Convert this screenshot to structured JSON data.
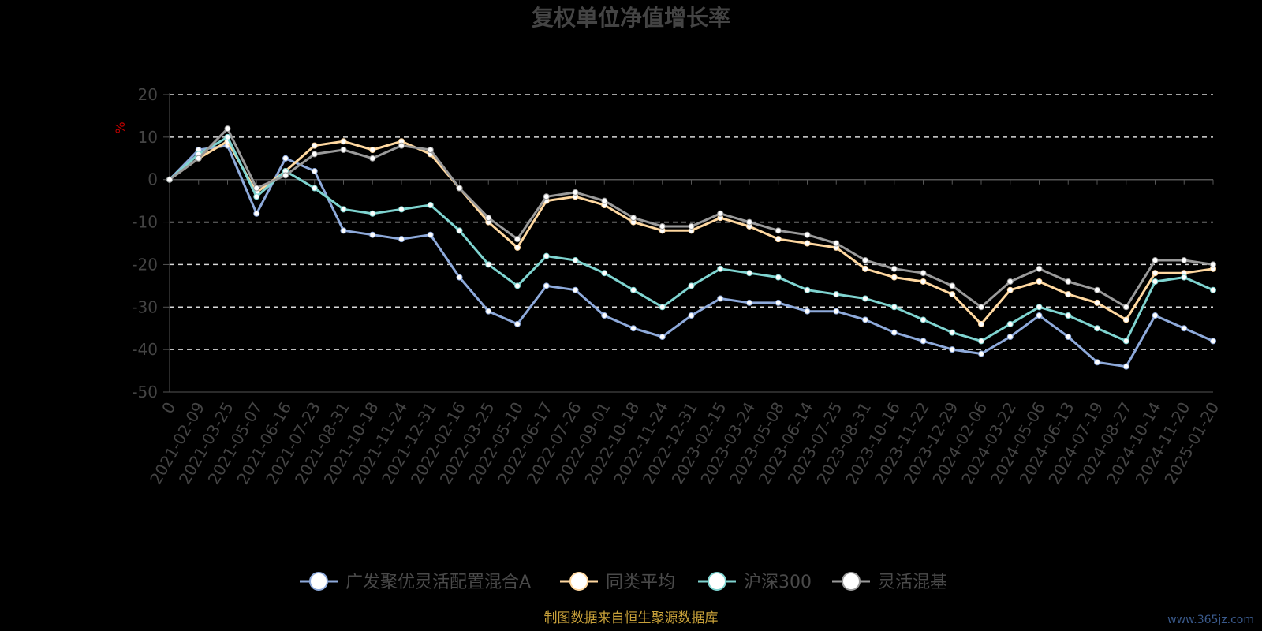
{
  "watermark": "www.365jz.com",
  "chart_data": {
    "type": "line",
    "title": "复权单位净值增长率",
    "ylabel": "%",
    "ylim": [
      -50,
      20
    ],
    "yticks": [
      20,
      10,
      0,
      -10,
      -20,
      -30,
      -40,
      -50
    ],
    "grid": true,
    "legend_position": "bottom",
    "source_note": "制图数据来自恒生聚源数据库",
    "x": [
      "0",
      "2021-02-09",
      "2021-03-25",
      "2021-05-07",
      "2021-06-16",
      "2021-07-23",
      "2021-08-31",
      "2021-10-18",
      "2021-11-24",
      "2021-12-31",
      "2022-02-16",
      "2022-03-25",
      "2022-05-10",
      "2022-06-17",
      "2022-07-26",
      "2022-09-01",
      "2022-10-18",
      "2022-11-24",
      "2022-12-31",
      "2023-02-15",
      "2023-03-24",
      "2023-05-08",
      "2023-06-14",
      "2023-07-25",
      "2023-08-31",
      "2023-10-16",
      "2023-11-22",
      "2023-12-29",
      "2024-02-06",
      "2024-03-22",
      "2024-05-06",
      "2024-06-13",
      "2024-07-19",
      "2024-08-27",
      "2024-10-14",
      "2024-11-20",
      "2025-01-20"
    ],
    "series": [
      {
        "name": "广发聚优灵活配置混合A",
        "color": "#8eaadb",
        "values": [
          0,
          7,
          8,
          -8,
          5,
          2,
          -12,
          -13,
          -14,
          -13,
          -23,
          -31,
          -34,
          -25,
          -26,
          -32,
          -35,
          -37,
          -32,
          -28,
          -29,
          -29,
          -31,
          -31,
          -33,
          -36,
          -38,
          -40,
          -41,
          -37,
          -32,
          -37,
          -43,
          -44,
          -32,
          -35,
          -38
        ]
      },
      {
        "name": "同类平均",
        "color": "#ffd8a0",
        "values": [
          0,
          5,
          9,
          -3,
          2,
          8,
          9,
          7,
          9,
          6,
          -2,
          -10,
          -16,
          -5,
          -4,
          -6,
          -10,
          -12,
          -12,
          -9,
          -11,
          -14,
          -15,
          -16,
          -21,
          -23,
          -24,
          -27,
          -34,
          -26,
          -24,
          -27,
          -29,
          -33,
          -22,
          -22,
          -21
        ]
      },
      {
        "name": "沪深300",
        "color": "#7fd4d0",
        "values": [
          0,
          6,
          10,
          -4,
          2,
          -2,
          -7,
          -8,
          -7,
          -6,
          -12,
          -20,
          -25,
          -18,
          -19,
          -22,
          -26,
          -30,
          -25,
          -21,
          -22,
          -23,
          -26,
          -27,
          -28,
          -30,
          -33,
          -36,
          -38,
          -34,
          -30,
          -32,
          -35,
          -38,
          -24,
          -23,
          -26
        ]
      },
      {
        "name": "灵活混基",
        "color": "#9a9a9a",
        "values": [
          0,
          5,
          12,
          -2,
          1,
          6,
          7,
          5,
          8,
          7,
          -2,
          -9,
          -14,
          -4,
          -3,
          -5,
          -9,
          -11,
          -11,
          -8,
          -10,
          -12,
          -13,
          -15,
          -19,
          -21,
          -22,
          -25,
          -30,
          -24,
          -21,
          -24,
          -26,
          -30,
          -19,
          -19,
          -20
        ]
      }
    ]
  }
}
